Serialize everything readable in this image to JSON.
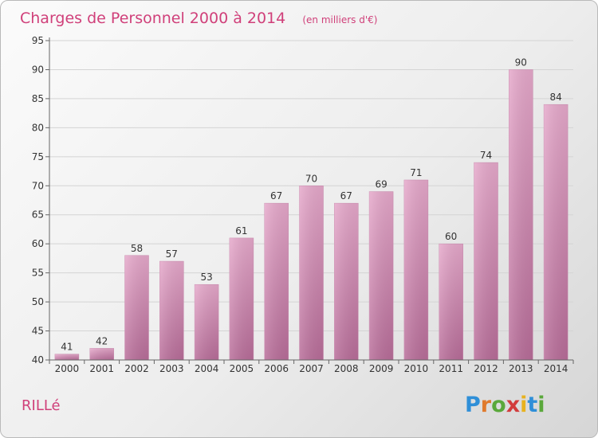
{
  "chart_data": {
    "type": "bar",
    "title": "Charges de Personnel 2000 à 2014",
    "subtitle": "(en milliers d'€)",
    "categories": [
      "2000",
      "2001",
      "2002",
      "2003",
      "2004",
      "2005",
      "2006",
      "2007",
      "2008",
      "2009",
      "2010",
      "2011",
      "2012",
      "2013",
      "2014"
    ],
    "values": [
      41,
      42,
      58,
      57,
      53,
      61,
      67,
      70,
      67,
      69,
      71,
      60,
      74,
      90,
      84
    ],
    "ylim": [
      40,
      95
    ],
    "yticks": [
      40,
      45,
      50,
      55,
      60,
      65,
      70,
      75,
      80,
      85,
      90,
      95
    ],
    "grid": true,
    "bar_color": "#d98cb6"
  },
  "footer": {
    "commune": "RILLé",
    "logo_letters": [
      "P",
      "r",
      "o",
      "x",
      "i",
      "t",
      "i"
    ],
    "logo_colors": [
      "#2f8fd8",
      "#e07a2c",
      "#5aa83b",
      "#d23c3c",
      "#e8b21f",
      "#2f8fd8",
      "#5aa83b"
    ]
  }
}
